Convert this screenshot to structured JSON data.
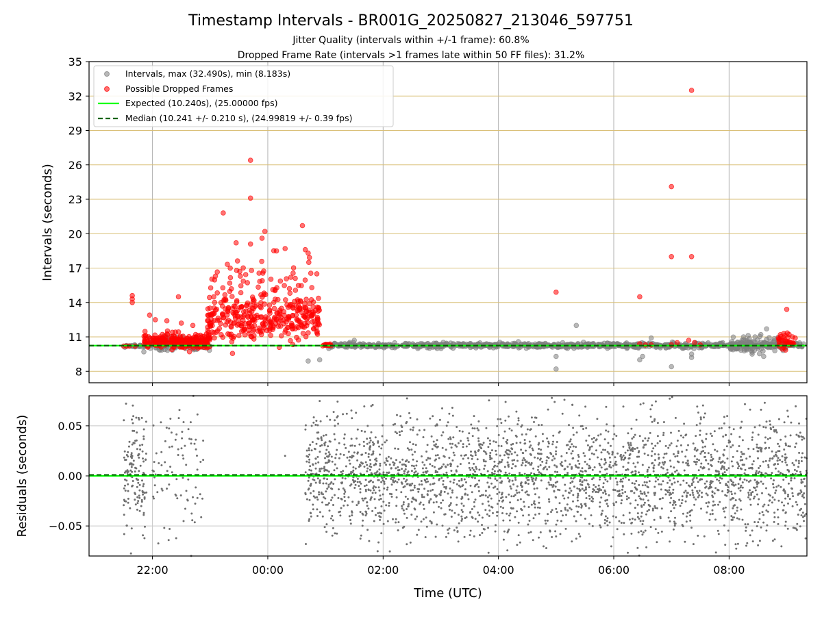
{
  "chart_data": [
    {
      "type": "scatter",
      "title": "Timestamp Intervals - BR001G_20250827_213046_597751",
      "subtitle_lines": [
        "Jitter Quality (intervals within +/-1 frame): 60.8%",
        "Dropped Frame Rate (intervals >1 frames late within 50 FF files): 31.2%"
      ],
      "xlabel": "",
      "ylabel": "Intervals (seconds)",
      "xlim_hours": [
        -3.1,
        9.35
      ],
      "ylim": [
        7,
        35
      ],
      "yticks": [
        8,
        11,
        14,
        17,
        20,
        23,
        26,
        29,
        32,
        35
      ],
      "ytick_labels": [
        "8",
        "11",
        "14",
        "17",
        "20",
        "23",
        "26",
        "29",
        "32",
        "35"
      ],
      "xticks_hours": [
        -2,
        0,
        2,
        4,
        6,
        8
      ],
      "grid": "horizontal gold lines and vertical grey lines",
      "legend_placement": "upper-left",
      "colors": {
        "intervals": "#808080",
        "dropped": "#ff0000",
        "expected": "#00ff00",
        "median": "#006400",
        "grid_y": "#d9bf77",
        "grid_x": "#b0b0b0"
      },
      "series": [
        {
          "name": "Intervals, max (32.490s), min (8.183s)",
          "kind": "points",
          "segments": [
            {
              "x_range": [
                -2.5,
                -2.05
              ],
              "center": 10.22,
              "spread": 0.06,
              "count": 30
            },
            {
              "x_range": [
                -2.05,
                -1.0
              ],
              "center": 10.35,
              "spread": 0.28,
              "count": 160
            },
            {
              "x_range": [
                1.0,
                9.3
              ],
              "center": 10.25,
              "spread": 0.1,
              "count": 900
            },
            {
              "x_range": [
                8.0,
                9.0
              ],
              "center": 10.35,
              "spread": 0.35,
              "count": 90
            }
          ],
          "outliers": [
            [
              -2.15,
              9.7
            ],
            [
              0.7,
              8.9
            ],
            [
              0.9,
              9.0
            ],
            [
              5.0,
              8.2
            ],
            [
              5.0,
              9.3
            ],
            [
              5.35,
              12.0
            ],
            [
              6.45,
              9.0
            ],
            [
              6.5,
              9.3
            ],
            [
              6.65,
              10.9
            ],
            [
              7.0,
              8.4
            ],
            [
              7.35,
              9.2
            ],
            [
              7.35,
              9.5
            ],
            [
              8.25,
              11.0
            ],
            [
              8.45,
              11.0
            ],
            [
              8.55,
              11.2
            ],
            [
              8.65,
              11.7
            ],
            [
              8.6,
              9.3
            ],
            [
              8.4,
              9.5
            ],
            [
              1.5,
              10.7
            ]
          ]
        },
        {
          "name": "Possible Dropped Frames",
          "kind": "points",
          "segments": [
            {
              "x_range": [
                -2.15,
                -1.0
              ],
              "center": 10.65,
              "spread": 0.35,
              "count": 220
            },
            {
              "x_range": [
                -1.05,
                0.9
              ],
              "center": 12.6,
              "spread": 0.9,
              "count": 320
            },
            {
              "x_range": [
                -1.0,
                0.85
              ],
              "center": 15.2,
              "spread": 2.0,
              "count": 75
            },
            {
              "x_range": [
                0.9,
                1.1
              ],
              "center": 10.3,
              "spread": 0.05,
              "count": 16
            },
            {
              "x_range": [
                8.85,
                9.15
              ],
              "center": 10.6,
              "spread": 0.35,
              "count": 35
            }
          ],
          "outliers": [
            [
              -2.35,
              14.6
            ],
            [
              -2.35,
              14.3
            ],
            [
              -2.35,
              14.0
            ],
            [
              -2.5,
              10.2
            ],
            [
              -2.45,
              10.2
            ],
            [
              -2.4,
              10.2
            ],
            [
              -2.3,
              10.2
            ],
            [
              -2.05,
              12.9
            ],
            [
              -1.95,
              12.5
            ],
            [
              -1.75,
              12.4
            ],
            [
              -1.55,
              14.5
            ],
            [
              -1.5,
              12.2
            ],
            [
              -1.3,
              12.0
            ],
            [
              -0.3,
              26.4
            ],
            [
              -0.3,
              23.1
            ],
            [
              -0.55,
              19.2
            ],
            [
              -0.1,
              19.6
            ],
            [
              -0.05,
              20.2
            ],
            [
              -0.3,
              19.1
            ],
            [
              0.15,
              18.5
            ],
            [
              0.3,
              18.7
            ],
            [
              0.6,
              20.7
            ],
            [
              0.65,
              18.6
            ],
            [
              0.7,
              18.3
            ],
            [
              0.85,
              16.5
            ],
            [
              5.0,
              14.9
            ],
            [
              6.45,
              14.5
            ],
            [
              6.45,
              10.4
            ],
            [
              6.55,
              10.3
            ],
            [
              6.65,
              10.3
            ],
            [
              7.0,
              24.1
            ],
            [
              7.0,
              18.0
            ],
            [
              7.35,
              32.5
            ],
            [
              7.35,
              18.0
            ],
            [
              7.0,
              10.3
            ],
            [
              7.1,
              10.5
            ],
            [
              7.3,
              10.7
            ],
            [
              7.4,
              10.5
            ],
            [
              7.5,
              10.3
            ],
            [
              9.0,
              13.4
            ],
            [
              8.95,
              11.3
            ],
            [
              9.1,
              11.0
            ]
          ]
        },
        {
          "name": "Expected (10.240s), (25.00000 fps)",
          "kind": "hline",
          "value": 10.24
        },
        {
          "name": "Median (10.241 +/- 0.210 s), (24.99819 +/- 0.39 fps)",
          "kind": "hline",
          "value": 10.241
        }
      ]
    },
    {
      "type": "scatter",
      "title": "",
      "xlabel": "Time (UTC)",
      "ylabel": "Residuals (seconds)",
      "xlim_hours": [
        -3.1,
        9.35
      ],
      "ylim": [
        -0.08,
        0.08
      ],
      "yticks": [
        0.05,
        0.0,
        -0.05
      ],
      "ytick_labels": [
        "0.05",
        "0.00",
        "−0.05"
      ],
      "xticks_hours": [
        -2,
        0,
        2,
        4,
        6,
        8
      ],
      "xtick_labels": [
        "22:00",
        "00:00",
        "02:00",
        "04:00",
        "06:00",
        "08:00"
      ],
      "grid": "on",
      "colors": {
        "points": "#707070",
        "expected": "#00ff00",
        "median": "#006400",
        "grid": "#c8c8c8"
      },
      "series": [
        {
          "name": "",
          "kind": "points",
          "segments": [
            {
              "x_range": [
                -2.5,
                -2.1
              ],
              "spread": 0.03,
              "count": 140
            },
            {
              "x_range": [
                -2.0,
                -1.1
              ],
              "spread": 0.04,
              "count": 90
            },
            {
              "x_range": [
                0.65,
                9.35
              ],
              "spread": 0.03,
              "count": 2600
            }
          ],
          "outliers": [
            [
              0.3,
              0.02
            ]
          ]
        },
        {
          "name": "",
          "kind": "hline",
          "value": 0.0
        },
        {
          "name": "",
          "kind": "hline",
          "value": 0.001
        }
      ]
    }
  ]
}
